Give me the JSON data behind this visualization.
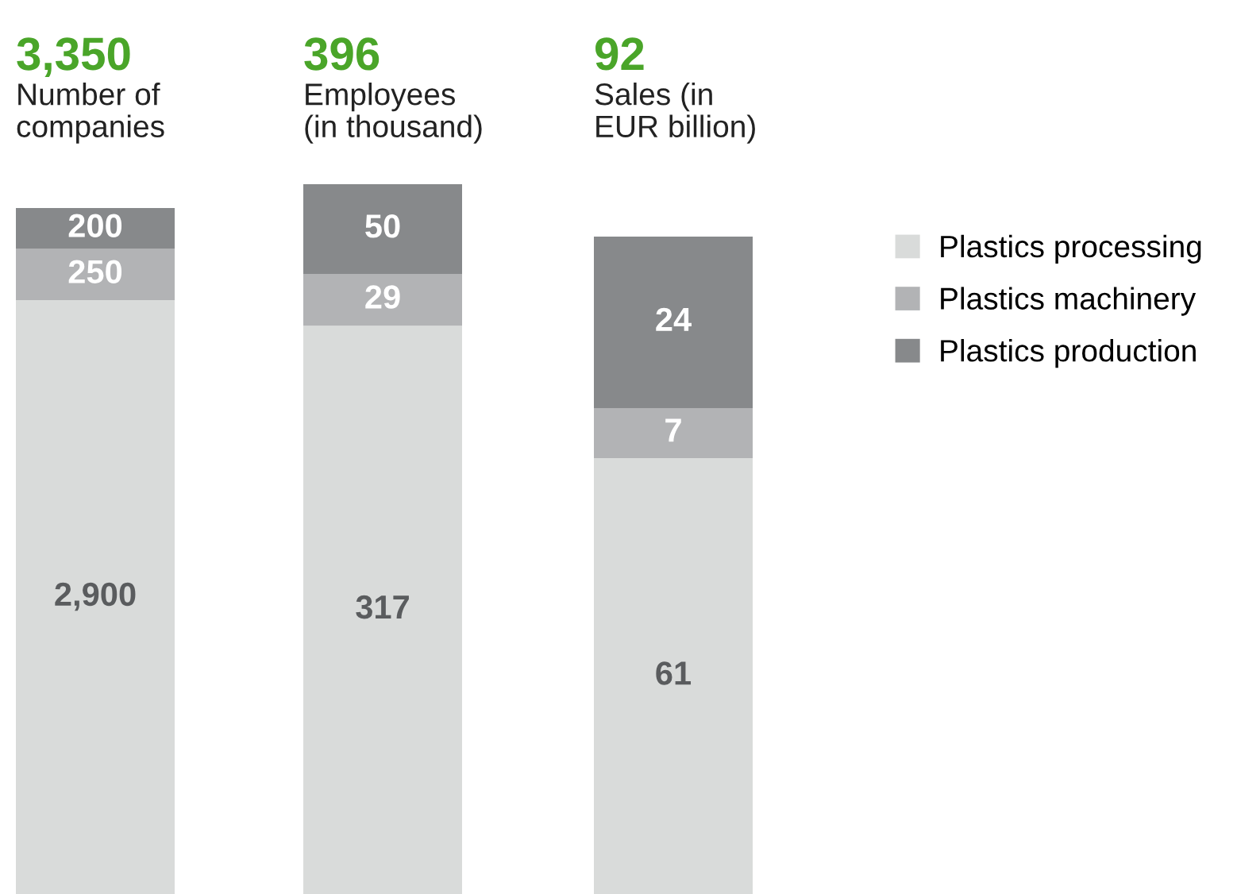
{
  "chart_data": [
    {
      "type": "bar",
      "title": "3,350",
      "subtitle": "Number of\ncompanies",
      "categories": [
        null
      ],
      "stacked": true,
      "legend": false,
      "series": [
        {
          "color": "#d9dbda",
          "values": [
            2900
          ],
          "value_labels": [
            "2,900"
          ]
        },
        {
          "color": "#b2b3b5",
          "values": [
            250
          ],
          "value_labels": [
            "250"
          ]
        },
        {
          "color": "#87898b",
          "values": [
            200
          ],
          "value_labels": [
            "200"
          ]
        }
      ]
    },
    {
      "type": "bar",
      "title": "396",
      "subtitle": "Employees\n(in thousand)",
      "categories": [
        null
      ],
      "stacked": true,
      "legend": false,
      "series": [
        {
          "color": "#d9dbda",
          "values": [
            317
          ],
          "value_labels": [
            "317"
          ]
        },
        {
          "color": "#b2b3b5",
          "values": [
            29
          ],
          "value_labels": [
            "29"
          ]
        },
        {
          "color": "#87898b",
          "values": [
            50
          ],
          "value_labels": [
            "50"
          ]
        }
      ]
    },
    {
      "type": "bar",
      "title": "92",
      "subtitle": "Sales (in\nEUR billion)",
      "categories": [
        null
      ],
      "stacked": true,
      "legend": "right",
      "series": [
        {
          "name": "Plastics processing",
          "color": "#d9dbda",
          "values": [
            61
          ],
          "value_labels": [
            "61"
          ]
        },
        {
          "name": "Plastics machinery",
          "color": "#b2b3b5",
          "values": [
            7
          ],
          "value_labels": [
            "7"
          ]
        },
        {
          "name": "Plastics production",
          "color": "#87898b",
          "values": [
            24
          ],
          "value_labels": [
            "24"
          ]
        }
      ]
    }
  ]
}
